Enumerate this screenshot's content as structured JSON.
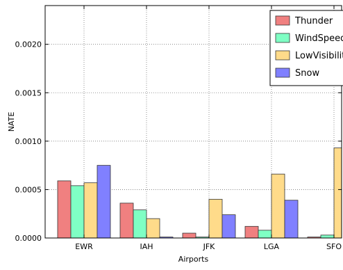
{
  "chart_data": {
    "type": "bar",
    "xlabel": "Airports",
    "ylabel": "NATE",
    "categories": [
      "EWR",
      "IAH",
      "JFK",
      "LGA",
      "SFO"
    ],
    "ylim": [
      0,
      0.0024
    ],
    "yticks": [
      "0.0000",
      "0.0005",
      "0.0010",
      "0.0015",
      "0.0020"
    ],
    "ytick_values": [
      0,
      0.0005,
      0.001,
      0.0015,
      0.002
    ],
    "grid": true,
    "legend_position": "top-right",
    "series": [
      {
        "name": "Thunder",
        "color": "#f08080",
        "values": [
          0.00059,
          0.00036,
          5e-05,
          0.00012,
          1e-05
        ]
      },
      {
        "name": "WindSpeed",
        "color": "#7fffc4",
        "values": [
          0.00054,
          0.00029,
          1e-05,
          8e-05,
          3e-05
        ]
      },
      {
        "name": "LowVisibility",
        "color": "#ffdb8a",
        "values": [
          0.00057,
          0.0002,
          0.0004,
          0.00066,
          0.00093
        ]
      },
      {
        "name": "Snow",
        "color": "#8080ff",
        "values": [
          0.00075,
          1e-05,
          0.00024,
          0.00039,
          0.0
        ]
      }
    ]
  }
}
